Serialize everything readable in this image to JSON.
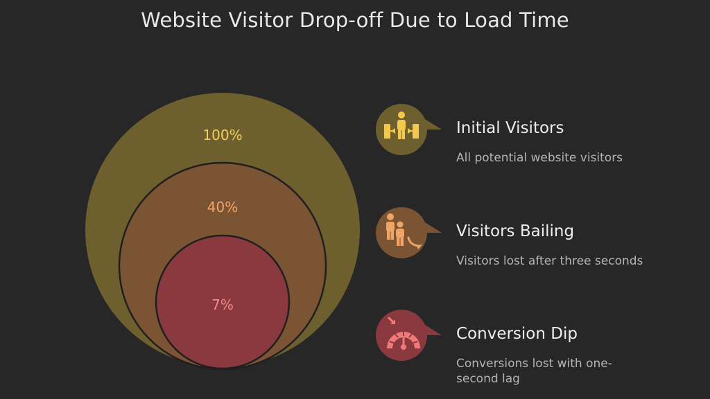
{
  "title": "Website Visitor Drop-off Due to Load Time",
  "colors": {
    "background": "#272728",
    "ring_outer": "#6e5f2f",
    "ring_middle": "#7a5433",
    "ring_inner": "#8a3a3f",
    "ring_outer_text": "#f2cf5c",
    "ring_middle_text": "#f0a566",
    "ring_inner_text": "#f08a8a"
  },
  "rings": [
    {
      "label": "100%",
      "value": 100
    },
    {
      "label": "40%",
      "value": 40
    },
    {
      "label": "7%",
      "value": 7
    }
  ],
  "items": [
    {
      "heading": "Initial Visitors",
      "description": "All potential website visitors",
      "icon": "people-doors-icon",
      "color": "#6e5f2f",
      "icon_color": "#f2c94c"
    },
    {
      "heading": "Visitors Bailing",
      "description": "Visitors lost after three seconds",
      "icon": "people-leaving-icon",
      "color": "#7a5433",
      "icon_color": "#f0a566"
    },
    {
      "heading": "Conversion Dip",
      "description": "Conversions lost with one-second lag",
      "icon": "speedometer-icon",
      "color": "#8a3a3f",
      "icon_color": "#f07a7a"
    }
  ]
}
